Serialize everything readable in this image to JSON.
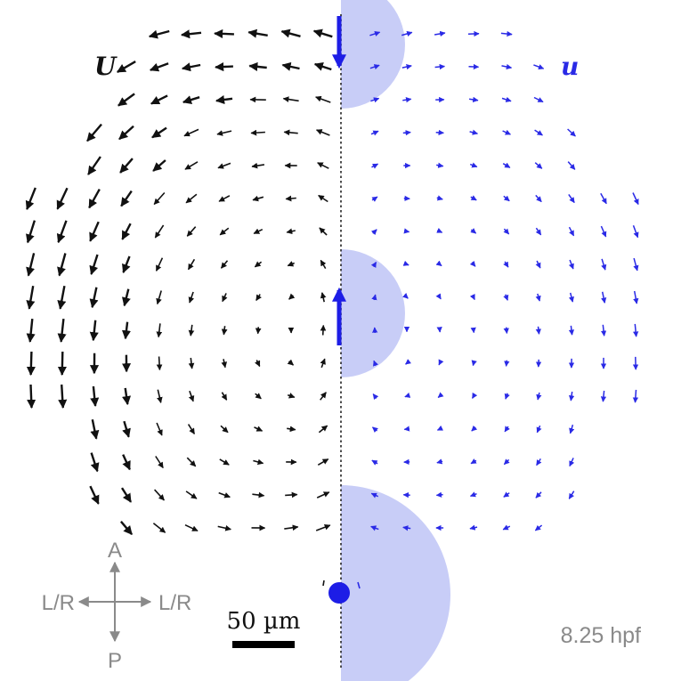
{
  "labels": {
    "left_field": "U",
    "right_field": "u",
    "scale_bar": "50 µm",
    "time": "8.25 hpf"
  },
  "compass": {
    "top": "A",
    "bottom": "P",
    "left": "L/R",
    "right": "L/R"
  },
  "colors": {
    "left_arrows": "#111111",
    "right_arrows": "#2a2ae6",
    "patch_fill": "#c8cdf7",
    "marker": "#1d1de6",
    "compass": "#8a8a8a",
    "time_text": "#8a8a8a"
  }
}
